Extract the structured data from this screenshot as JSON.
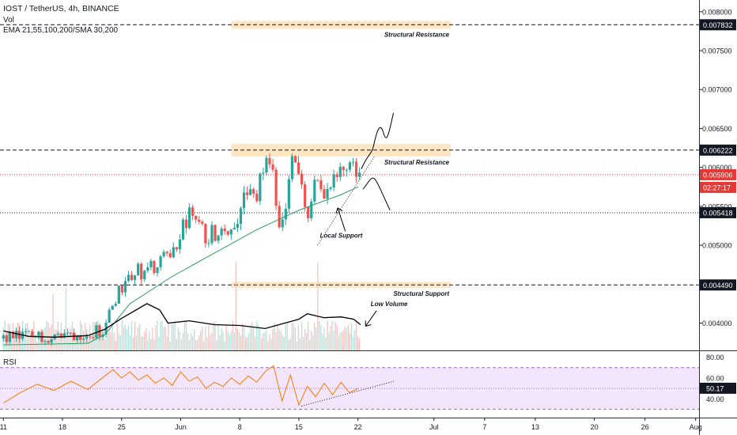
{
  "header": {
    "symbol_line": "IOST / TetherUS, 4h, BINANCE",
    "vol_label": "Vol",
    "ma_label": "EMA 21,55,100,200/SMA 30,200"
  },
  "rsi_label": "RSI",
  "colors": {
    "up": "#26a69a",
    "down": "#ef5350",
    "ema_green": "#2e9d5b",
    "ema_black": "#000000",
    "zone": "#fde3bd",
    "rsi_line": "#f57c00",
    "rsi_band": "#f3e5fb",
    "price_line": "#e53935",
    "axis_text": "#131722"
  },
  "chart_data": [
    {
      "type": "candlestick",
      "title": "IOST / TetherUS, 4h, BINANCE",
      "ylim": [
        0.00365,
        0.00815
      ],
      "y_scale": "linear",
      "y_ticks": [
        "0.008000",
        "0.007500",
        "0.007000",
        "0.006500",
        "0.006000",
        "0.005500",
        "0.005000",
        "0.004000"
      ],
      "x_ticks": [
        {
          "label": "11",
          "day": 0
        },
        {
          "label": "18",
          "day": 7
        },
        {
          "label": "25",
          "day": 14
        },
        {
          "label": "Jun",
          "day": 21
        },
        {
          "label": "8",
          "day": 28
        },
        {
          "label": "15",
          "day": 35
        },
        {
          "label": "22",
          "day": 42
        },
        {
          "label": "Jul",
          "day": 51
        },
        {
          "label": "7",
          "day": 57
        },
        {
          "label": "13",
          "day": 63
        },
        {
          "label": "20",
          "day": 70
        },
        {
          "label": "26",
          "day": 76
        },
        {
          "label": "Aug",
          "day": 82
        }
      ],
      "x_range_days": [
        -0.4,
        82.4
      ],
      "ohlc_path": [
        [
          0,
          0.0038
        ],
        [
          7,
          0.00385
        ],
        [
          12,
          0.00392
        ],
        [
          13.5,
          0.0044
        ],
        [
          15,
          0.00465
        ],
        [
          18,
          0.0047
        ],
        [
          20,
          0.0049
        ],
        [
          22,
          0.0054
        ],
        [
          24,
          0.0051
        ],
        [
          26,
          0.00525
        ],
        [
          27,
          0.0052
        ],
        [
          28.5,
          0.0056
        ],
        [
          30,
          0.00568
        ],
        [
          31.5,
          0.0061
        ],
        [
          33,
          0.00515
        ],
        [
          34,
          0.00615
        ],
        [
          35,
          0.006
        ],
        [
          36,
          0.00525
        ],
        [
          37,
          0.0058
        ],
        [
          38.5,
          0.0057
        ],
        [
          40,
          0.00595
        ],
        [
          41,
          0.00605
        ],
        [
          42,
          0.0059
        ]
      ],
      "current_price": "0.005906",
      "countdown": "02:27:17",
      "price_labels": [
        {
          "label": "0.007832",
          "price": 0.007832,
          "style": "dashed"
        },
        {
          "label": "0.006222",
          "price": 0.006222,
          "style": "dashed"
        },
        {
          "label": "0.005418",
          "price": 0.005418,
          "style": "dotted"
        },
        {
          "label": "0.004490",
          "price": 0.00449,
          "style": "dashed"
        }
      ],
      "zones": [
        {
          "label": "Structural Resistance",
          "from_day": 27,
          "to_day": 53,
          "price_low": 0.00778,
          "price_high": 0.00788
        },
        {
          "label": "Structural Resistance",
          "from_day": 27,
          "to_day": 53,
          "price_low": 0.00614,
          "price_high": 0.0063
        },
        {
          "label": "Structural Support",
          "from_day": 27,
          "to_day": 53,
          "price_low": 0.00445,
          "price_high": 0.00453
        }
      ],
      "annotations": [
        {
          "label": "Local Support",
          "day": 37.5,
          "price": 0.0051
        },
        {
          "label": "Low Volume",
          "day": 43.5,
          "price": 0.00422
        }
      ],
      "ema_fast": [
        [
          0,
          0.00372
        ],
        [
          10,
          0.00374
        ],
        [
          12,
          0.00385
        ],
        [
          15,
          0.00425
        ],
        [
          20,
          0.0046
        ],
        [
          25,
          0.0049
        ],
        [
          30,
          0.0052
        ],
        [
          35,
          0.00545
        ],
        [
          40,
          0.00565
        ],
        [
          42,
          0.00575
        ]
      ],
      "volume_ma": [
        [
          0,
          0.0039
        ],
        [
          3,
          0.00383
        ],
        [
          6,
          0.00382
        ],
        [
          10,
          0.00384
        ],
        [
          12,
          0.00392
        ],
        [
          14,
          0.00406
        ],
        [
          17,
          0.00425
        ],
        [
          18.5,
          0.00417
        ],
        [
          19.5,
          0.004
        ],
        [
          22,
          0.00403
        ],
        [
          25,
          0.00398
        ],
        [
          28,
          0.00397
        ],
        [
          31,
          0.00393
        ],
        [
          33,
          0.00399
        ],
        [
          35,
          0.00405
        ],
        [
          36,
          0.00412
        ],
        [
          38,
          0.00407
        ],
        [
          40,
          0.00408
        ],
        [
          41.5,
          0.00405
        ],
        [
          42.3,
          0.00398
        ]
      ]
    },
    {
      "type": "line",
      "title": "RSI",
      "ylim": [
        25,
        82
      ],
      "y_ticks": [
        "80.00",
        "60.00",
        "40.00"
      ],
      "bands": [
        70,
        30
      ],
      "current_value": "50.17",
      "x": [
        0,
        2,
        4,
        6,
        8,
        10,
        12,
        13,
        14,
        15,
        16,
        17,
        18,
        19,
        20,
        21,
        22,
        23,
        24,
        25,
        26,
        27,
        28,
        29,
        30,
        31,
        32,
        33,
        34,
        35,
        36,
        37,
        38,
        39,
        40,
        41,
        42
      ],
      "values": [
        36,
        46,
        54,
        48,
        57,
        49,
        62,
        68,
        60,
        66,
        58,
        63,
        55,
        60,
        53,
        66,
        57,
        61,
        50,
        56,
        52,
        60,
        54,
        62,
        56,
        66,
        72,
        38,
        63,
        34,
        52,
        42,
        55,
        44,
        56,
        46,
        50
      ]
    }
  ]
}
